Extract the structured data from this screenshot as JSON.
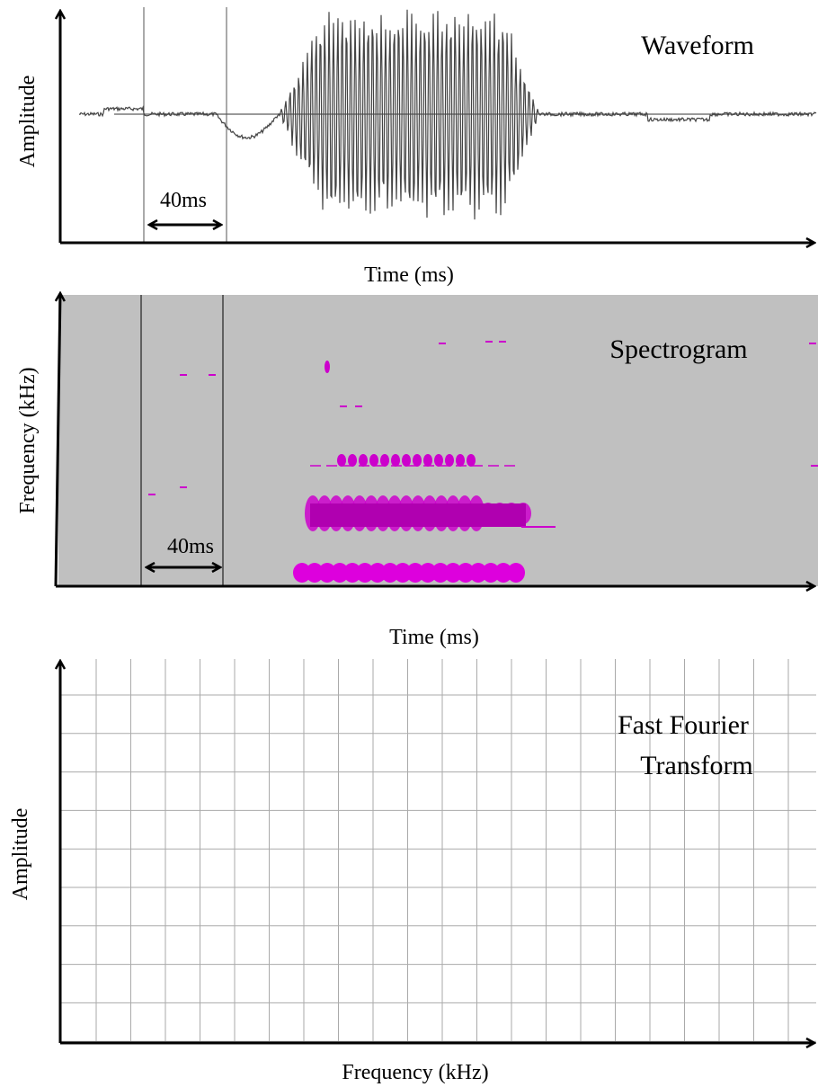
{
  "panels": [
    {
      "title": "Waveform",
      "y_label": "Amplitude",
      "x_label": "Time (ms)",
      "annotation": "40ms"
    },
    {
      "title": "Spectrogram",
      "y_label": "Frequency (kHz)",
      "x_label": "Time (ms)",
      "annotation": "40ms"
    },
    {
      "title_lines": [
        "Fast Fourier",
        "Transform"
      ],
      "y_label": "Amplitude",
      "x_label": "Frequency (kHz)"
    }
  ]
}
